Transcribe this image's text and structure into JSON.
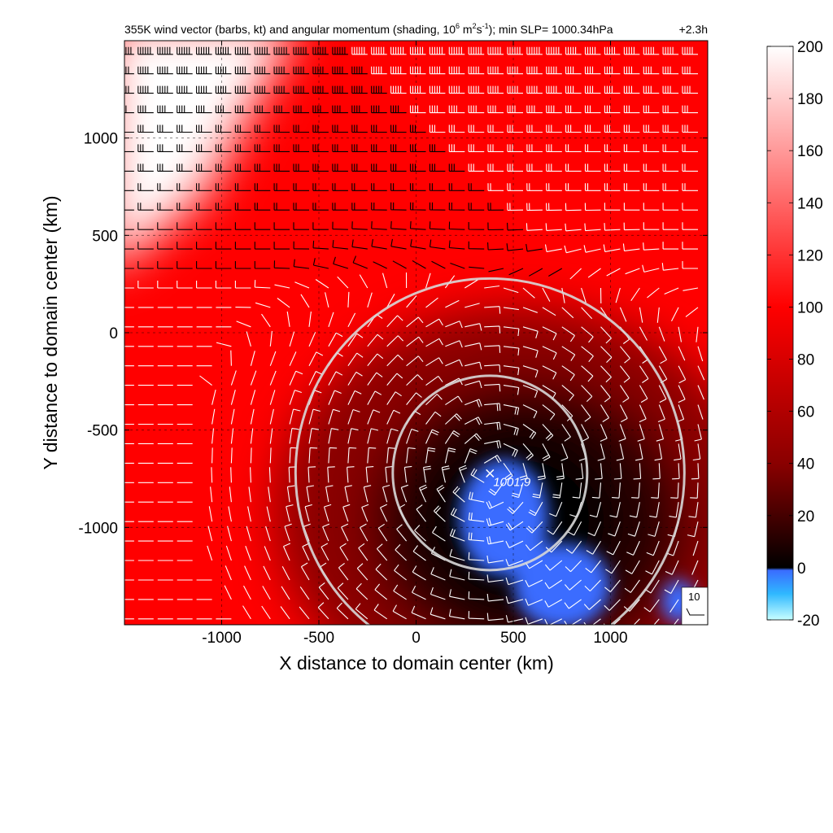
{
  "chart_data": {
    "type": "heatmap",
    "title_parts": {
      "main": "355K wind vector (barbs, kt) and angular momentum (shading, 10",
      "exp1": "6",
      "m": " m",
      "exp2": "2",
      "s": "s",
      "exp3": "-1",
      "rest": "); min SLP= 1000.34hPa",
      "time": "+2.3h"
    },
    "xlabel": "X distance to domain center (km)",
    "ylabel": "Y distance to domain center (km)",
    "xlim": [
      -1500,
      1500
    ],
    "ylim": [
      -1500,
      1500
    ],
    "x_ticks": [
      -1000,
      -500,
      0,
      500,
      1000
    ],
    "y_ticks": [
      1000,
      500,
      0,
      -500,
      -1000
    ],
    "x_tick_labels": [
      "-1000",
      "-500",
      "0",
      "500",
      "1000"
    ],
    "y_tick_labels": [
      "1000",
      "500",
      "0",
      "-500",
      "-1000"
    ],
    "grid": true,
    "colorbar": {
      "min": -20,
      "max": 200,
      "ticks": [
        200,
        180,
        160,
        140,
        120,
        100,
        80,
        60,
        40,
        20,
        0,
        -20
      ],
      "tick_labels": [
        "200",
        "180",
        "160",
        "140",
        "120",
        "100",
        "80",
        "60",
        "40",
        "20",
        "0",
        "-20"
      ],
      "colors": {
        "neg_low": "#c8ffff",
        "neg_mid": "#2fb8ff",
        "neg_high": "#3a6cff",
        "zero": "#000000",
        "mid": "#8a0000",
        "high": "#ff0000",
        "top": "#ffffff"
      }
    },
    "storm_center": {
      "x": 380,
      "y": -720,
      "label": "1001.9"
    },
    "rings_km": [
      500,
      1000
    ],
    "reference_barb": {
      "label": "10"
    }
  }
}
